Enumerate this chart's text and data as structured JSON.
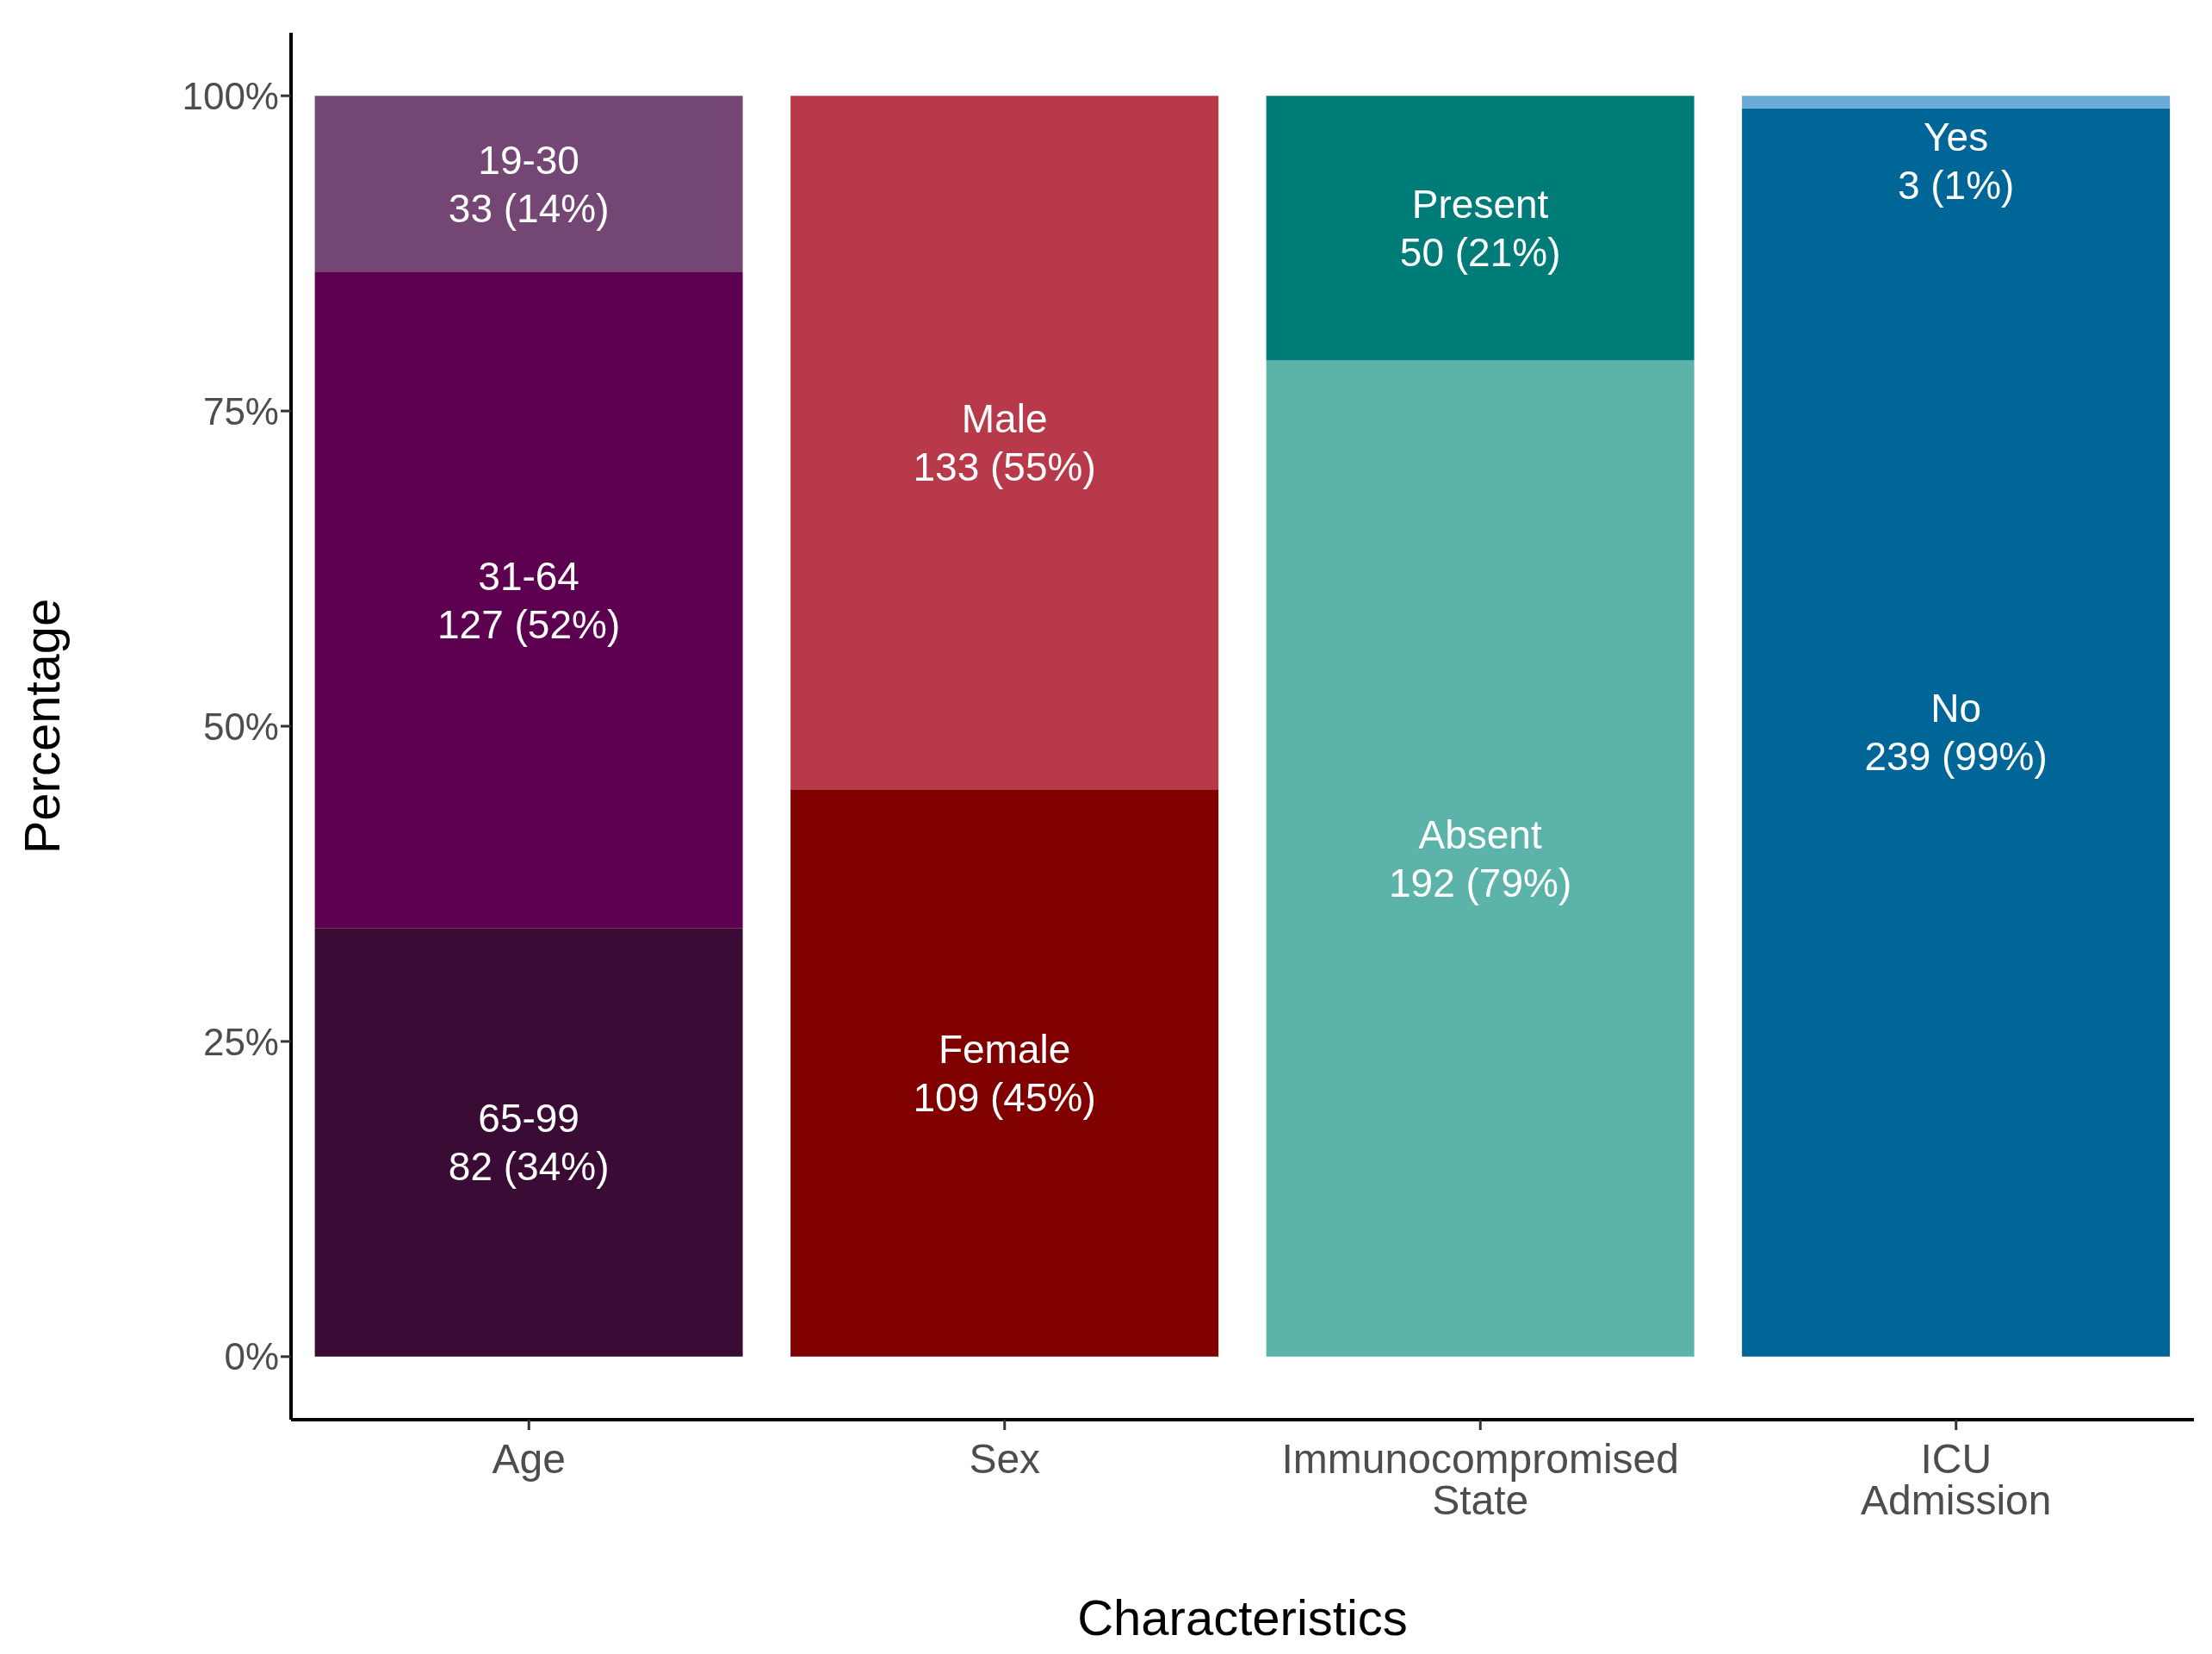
{
  "chart_data": {
    "type": "bar",
    "stacked": true,
    "xlabel": "Characteristics",
    "ylabel": "Percentage",
    "categories": [
      "Age",
      "Sex",
      "Immunocompromised State",
      "ICU Admission"
    ],
    "series": [
      {
        "colors": [
          "#3a0c35",
          "#800000",
          "#5bb3a9",
          "#006597"
        ],
        "values": [
          34,
          45,
          79,
          99
        ],
        "value_labels": [
          "65-99\n82 (34%)",
          "Female\n109 (45%)",
          "Absent\n192 (79%)",
          "No\n239 (99%)"
        ]
      },
      {
        "colors": [
          "#5e0050",
          "#b83a4a",
          "#007c78",
          "#6aaad4"
        ],
        "values": [
          52,
          55,
          21,
          1
        ],
        "value_labels": [
          "31-64\n127 (52%)",
          "Male\n133 (55%)",
          "Present\n50 (21%)",
          "Yes\n3 (1%)"
        ]
      },
      {
        "colors": [
          "#744673",
          null,
          null,
          null
        ],
        "values": [
          14,
          null,
          null,
          null
        ],
        "value_labels": [
          "19-30\n33 (14%)",
          null,
          null,
          null
        ]
      }
    ],
    "ylim": [
      -5,
      105
    ],
    "yticks": [
      {
        "value": 0,
        "label": "0%"
      },
      {
        "value": 25,
        "label": "25%"
      },
      {
        "value": 50,
        "label": "50%"
      },
      {
        "value": 75,
        "label": "75%"
      },
      {
        "value": 100,
        "label": "100%"
      }
    ],
    "grid": false,
    "legend": false
  }
}
